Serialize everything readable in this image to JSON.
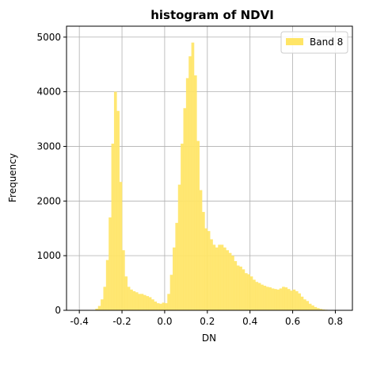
{
  "chart_data": {
    "type": "bar",
    "title": "histogram of NDVI",
    "xlabel": "DN",
    "ylabel": "Frequency",
    "xlim": [
      -0.46,
      0.88
    ],
    "ylim": [
      0,
      5200
    ],
    "grid": true,
    "x_ticks": [
      -0.4,
      -0.2,
      0.0,
      0.2,
      0.4,
      0.6,
      0.8
    ],
    "x_tick_labels": [
      "-0.4",
      "-0.2",
      "0.0",
      "0.2",
      "0.4",
      "0.6",
      "0.8"
    ],
    "y_ticks": [
      0,
      1000,
      2000,
      3000,
      4000,
      5000
    ],
    "y_tick_labels": [
      "0",
      "1000",
      "2000",
      "3000",
      "4000",
      "5000"
    ],
    "legend": {
      "placement": "upper-right",
      "entries": [
        {
          "label": "Band 8",
          "color": "#ffe566"
        }
      ]
    },
    "bin_width": 0.0125,
    "series": [
      {
        "name": "Band 8",
        "color": "#ffe566",
        "bins_start": [
          -0.325,
          -0.3125,
          -0.3,
          -0.2875,
          -0.275,
          -0.2625,
          -0.25,
          -0.2375,
          -0.225,
          -0.2125,
          -0.2,
          -0.1875,
          -0.175,
          -0.1625,
          -0.15,
          -0.1375,
          -0.125,
          -0.1125,
          -0.1,
          -0.0875,
          -0.075,
          -0.0625,
          -0.05,
          -0.0375,
          -0.025,
          -0.0125,
          0.0,
          0.0125,
          0.025,
          0.0375,
          0.05,
          0.0625,
          0.075,
          0.0875,
          0.1,
          0.1125,
          0.125,
          0.1375,
          0.15,
          0.1625,
          0.175,
          0.1875,
          0.2,
          0.2125,
          0.225,
          0.2375,
          0.25,
          0.2625,
          0.275,
          0.2875,
          0.3,
          0.3125,
          0.325,
          0.3375,
          0.35,
          0.3625,
          0.375,
          0.3875,
          0.4,
          0.4125,
          0.425,
          0.4375,
          0.45,
          0.4625,
          0.475,
          0.4875,
          0.5,
          0.5125,
          0.525,
          0.5375,
          0.55,
          0.5625,
          0.575,
          0.5875,
          0.6,
          0.6125,
          0.625,
          0.6375,
          0.65,
          0.6625,
          0.675,
          0.6875,
          0.7,
          0.7125,
          0.725,
          0.7375,
          0.75,
          0.775
        ],
        "values": [
          30,
          80,
          200,
          430,
          920,
          1700,
          3050,
          4000,
          3650,
          2350,
          1100,
          620,
          430,
          380,
          350,
          330,
          300,
          300,
          280,
          260,
          240,
          200,
          160,
          130,
          120,
          140,
          130,
          300,
          650,
          1150,
          1600,
          2300,
          3050,
          3700,
          4250,
          4650,
          4900,
          4300,
          3100,
          2200,
          1800,
          1500,
          1450,
          1300,
          1200,
          1150,
          1200,
          1200,
          1150,
          1100,
          1050,
          1000,
          900,
          820,
          800,
          750,
          680,
          660,
          620,
          560,
          520,
          500,
          470,
          450,
          430,
          420,
          400,
          390,
          380,
          400,
          430,
          420,
          390,
          360,
          380,
          350,
          310,
          250,
          200,
          170,
          120,
          90,
          60,
          40,
          25,
          15,
          10,
          5
        ]
      }
    ]
  }
}
